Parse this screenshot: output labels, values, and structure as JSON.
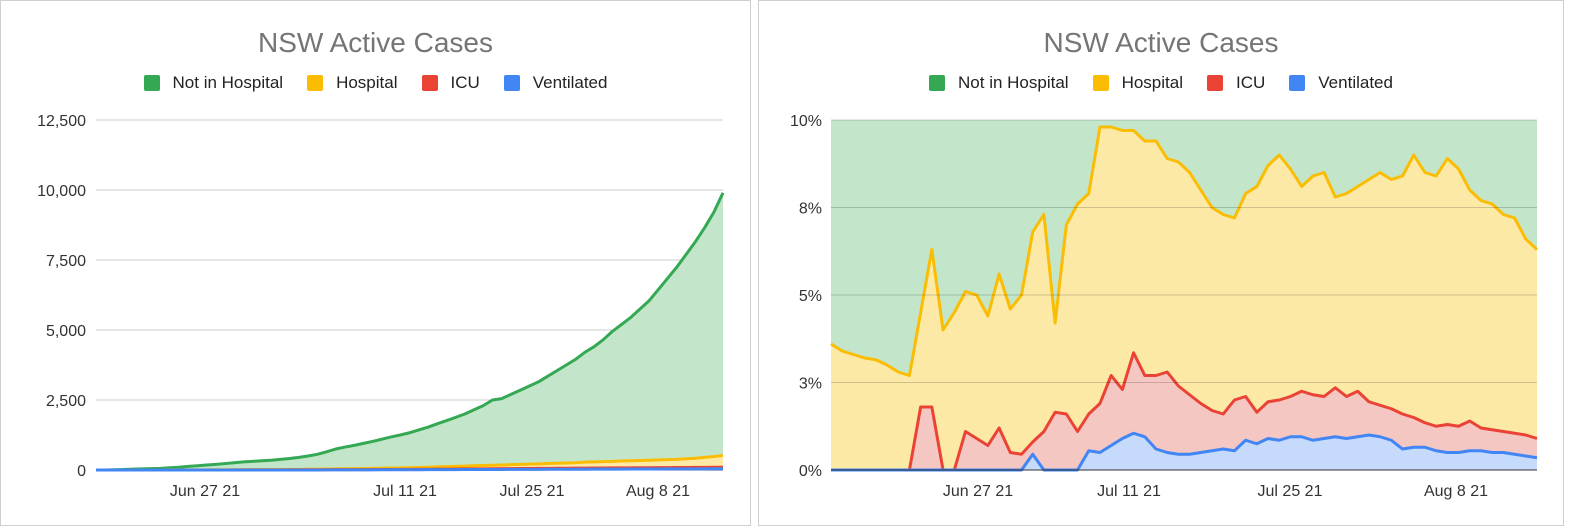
{
  "chart_data": [
    {
      "type": "area",
      "title": "NSW Active Cases",
      "legend_position": "top",
      "grid": true,
      "xlabel": "",
      "ylabel": "",
      "x_ticks": [
        "Jun 27 21",
        "Jul 11 21",
        "Jul 25 21",
        "Aug 8 21"
      ],
      "y_ticks": [
        "0",
        "2,500",
        "5,000",
        "7,500",
        "10,000",
        "12,500"
      ],
      "ylim": [
        0,
        12500
      ],
      "x_start": "2021-06-16",
      "series": [
        {
          "name": "Not in Hospital",
          "color": "#34a853",
          "fill": "#c3e6cb",
          "values": [
            0,
            0,
            10,
            20,
            30,
            40,
            50,
            60,
            80,
            100,
            130,
            150,
            180,
            200,
            230,
            260,
            290,
            310,
            330,
            350,
            380,
            410,
            450,
            500,
            560,
            650,
            750,
            820,
            880,
            950,
            1020,
            1100,
            1180,
            1250,
            1330,
            1430,
            1530,
            1650,
            1760,
            1880,
            2000,
            2150,
            2300,
            2500,
            2550,
            2700,
            2850,
            3000,
            3150,
            3350,
            3550,
            3750,
            3950,
            4200,
            4400,
            4650,
            4950,
            5200,
            5450,
            5750,
            6050,
            6450,
            6850,
            7250,
            7700,
            8150,
            8650,
            9200,
            9900
          ]
        },
        {
          "name": "Hospital",
          "color": "#fbbc04",
          "fill": "#fde9a6",
          "values": [
            0,
            0,
            0,
            0,
            1,
            1,
            2,
            2,
            3,
            3,
            4,
            5,
            5,
            7,
            8,
            9,
            10,
            12,
            14,
            16,
            18,
            20,
            24,
            28,
            32,
            36,
            40,
            45,
            50,
            55,
            60,
            65,
            70,
            75,
            80,
            90,
            100,
            110,
            120,
            130,
            140,
            150,
            160,
            170,
            180,
            190,
            200,
            210,
            220,
            230,
            240,
            250,
            260,
            280,
            290,
            300,
            310,
            320,
            330,
            340,
            350,
            360,
            370,
            380,
            400,
            420,
            450,
            480,
            520
          ]
        },
        {
          "name": "ICU",
          "color": "#ea4335",
          "fill": "#f4c7c3",
          "values": [
            0,
            0,
            0,
            0,
            0,
            0,
            0,
            0,
            1,
            1,
            1,
            1,
            1,
            2,
            2,
            3,
            3,
            4,
            4,
            5,
            6,
            7,
            8,
            9,
            10,
            11,
            12,
            13,
            14,
            15,
            16,
            18,
            20,
            21,
            23,
            25,
            27,
            30,
            32,
            35,
            38,
            40,
            42,
            45,
            48,
            50,
            52,
            55,
            57,
            60,
            62,
            64,
            66,
            68,
            70,
            72,
            74,
            76,
            78,
            80,
            82,
            84,
            86,
            88,
            90,
            92,
            94,
            96,
            98
          ]
        },
        {
          "name": "Ventilated",
          "color": "#4285f4",
          "fill": "#c6dafc",
          "values": [
            0,
            0,
            0,
            0,
            0,
            0,
            0,
            0,
            0,
            0,
            0,
            0,
            0,
            0,
            0,
            0,
            0,
            1,
            1,
            1,
            1,
            1,
            1,
            2,
            2,
            3,
            3,
            4,
            4,
            5,
            6,
            7,
            8,
            9,
            10,
            11,
            12,
            13,
            14,
            15,
            16,
            17,
            18,
            19,
            20,
            21,
            22,
            23,
            24,
            25,
            26,
            27,
            28,
            29,
            30,
            31,
            32,
            33,
            34,
            35,
            36,
            37,
            38,
            39,
            40,
            41,
            42,
            43,
            44
          ]
        }
      ]
    },
    {
      "type": "area",
      "stacked": "percent",
      "title": "NSW Active Cases",
      "legend_position": "top",
      "grid": true,
      "xlabel": "",
      "ylabel": "",
      "x_ticks": [
        "Jun 27 21",
        "Jul 11 21",
        "Jul 25 21",
        "Aug 8 21"
      ],
      "y_ticks": [
        "0%",
        "3%",
        "5%",
        "8%",
        "10%"
      ],
      "ylim": [
        0,
        10
      ],
      "x_start": "2021-06-16",
      "series": [
        {
          "name": "Not in Hospital",
          "color": "#34a853",
          "fill": "#c3e6cb",
          "note_level": 10
        },
        {
          "name": "Hospital",
          "color": "#fbbc04",
          "fill": "#fde9a6",
          "values": [
            3.6,
            3.4,
            3.3,
            3.2,
            3.15,
            3.0,
            2.8,
            2.7,
            4.5,
            6.3,
            4.0,
            4.5,
            5.1,
            5.0,
            4.4,
            5.6,
            4.6,
            5.0,
            6.8,
            7.3,
            4.2,
            7.0,
            7.6,
            7.9,
            9.8,
            9.8,
            9.7,
            9.7,
            9.4,
            9.4,
            8.9,
            8.8,
            8.5,
            8.0,
            7.5,
            7.3,
            7.2,
            7.9,
            8.1,
            8.7,
            9.0,
            8.6,
            8.1,
            8.4,
            8.5,
            7.8,
            7.9,
            8.1,
            8.3,
            8.5,
            8.3,
            8.4,
            9.0,
            8.5,
            8.4,
            8.9,
            8.6,
            8.0,
            7.7,
            7.6,
            7.3,
            7.2,
            6.6,
            6.3
          ]
        },
        {
          "name": "ICU",
          "color": "#ea4335",
          "fill": "#f4c7c3",
          "values": [
            0,
            0,
            0,
            0,
            0,
            0,
            0,
            0,
            1.8,
            1.8,
            0,
            0,
            1.1,
            0.9,
            0.7,
            1.2,
            0.5,
            0.45,
            0.8,
            1.1,
            1.65,
            1.6,
            1.1,
            1.6,
            1.9,
            2.7,
            2.3,
            3.35,
            2.7,
            2.7,
            2.8,
            2.4,
            2.15,
            1.9,
            1.7,
            1.6,
            2.0,
            2.1,
            1.65,
            1.95,
            2.0,
            2.1,
            2.25,
            2.15,
            2.1,
            2.35,
            2.1,
            2.25,
            1.95,
            1.85,
            1.75,
            1.6,
            1.5,
            1.35,
            1.25,
            1.3,
            1.25,
            1.4,
            1.2,
            1.15,
            1.1,
            1.05,
            1.0,
            0.9
          ]
        },
        {
          "name": "Ventilated",
          "color": "#4285f4",
          "fill": "#c6dafc",
          "values": [
            0,
            0,
            0,
            0,
            0,
            0,
            0,
            0,
            0,
            0,
            0,
            0,
            0,
            0,
            0,
            0,
            0,
            0,
            0.45,
            0,
            0,
            0,
            0,
            0.55,
            0.5,
            0.7,
            0.9,
            1.05,
            0.95,
            0.6,
            0.5,
            0.45,
            0.45,
            0.5,
            0.55,
            0.6,
            0.55,
            0.85,
            0.75,
            0.9,
            0.85,
            0.95,
            0.95,
            0.85,
            0.9,
            0.95,
            0.9,
            0.95,
            1.0,
            0.95,
            0.85,
            0.6,
            0.65,
            0.65,
            0.55,
            0.5,
            0.5,
            0.55,
            0.55,
            0.5,
            0.5,
            0.45,
            0.4,
            0.35
          ]
        }
      ]
    }
  ]
}
